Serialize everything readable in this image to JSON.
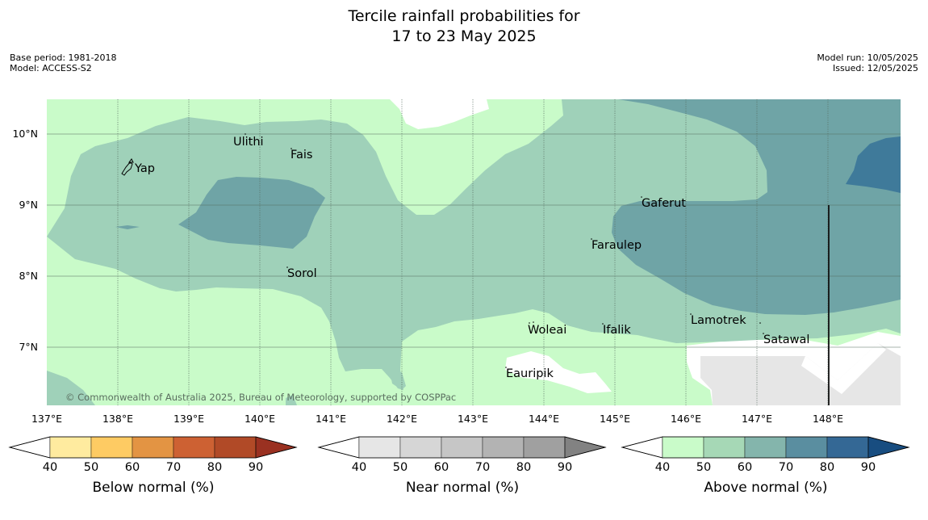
{
  "title": {
    "line1": "Tercile rainfall probabilities for",
    "line2": "17 to 23 May 2025"
  },
  "meta": {
    "base_period": "Base period: 1981-2018",
    "model": "Model: ACCESS-S2",
    "model_run": "Model run: 10/05/2025",
    "issued": "Issued: 12/05/2025"
  },
  "map": {
    "lat_labels": [
      "10°N",
      "9°N",
      "8°N",
      "7°N"
    ],
    "lon_labels": [
      "137°E",
      "138°E",
      "139°E",
      "140°E",
      "141°E",
      "142°E",
      "143°E",
      "144°E",
      "145°E",
      "146°E",
      "147°E",
      "148°E"
    ],
    "places": [
      {
        "name": "Yap"
      },
      {
        "name": "Ulithi"
      },
      {
        "name": "Fais"
      },
      {
        "name": "Sorol"
      },
      {
        "name": "Gaferut"
      },
      {
        "name": "Faraulep"
      },
      {
        "name": "Woleai"
      },
      {
        "name": "Ifalik"
      },
      {
        "name": "Lamotrek"
      },
      {
        "name": "Satawal"
      },
      {
        "name": "Eauripik"
      }
    ],
    "copyright": "© Commonwealth of Australia 2025, Bureau of Meteorology, supported by COSPPac",
    "colors": {
      "above_50": "#c9fbc9",
      "above_60": "#9fd1b9",
      "above_70": "#6fa4a6",
      "above_80": "#3f7a9a",
      "near_40": "#e6e6e6"
    }
  },
  "colorbars": [
    {
      "title": "Below normal (%)",
      "ticks": [
        "40",
        "50",
        "60",
        "70",
        "80",
        "90"
      ],
      "colors": [
        "#ffffff",
        "#ffeb9f",
        "#fecb63",
        "#e39443",
        "#cd6133",
        "#b14a27",
        "#9a3121"
      ]
    },
    {
      "title": "Near normal (%)",
      "ticks": [
        "40",
        "50",
        "60",
        "70",
        "80",
        "90"
      ],
      "colors": [
        "#ffffff",
        "#e6e6e6",
        "#d6d6d6",
        "#c6c6c6",
        "#b3b3b3",
        "#a0a0a0",
        "#828282"
      ]
    },
    {
      "title": "Above normal (%)",
      "ticks": [
        "40",
        "50",
        "60",
        "70",
        "80",
        "90"
      ],
      "colors": [
        "#ffffff",
        "#c9fbc9",
        "#a6d8b6",
        "#84b5ac",
        "#5a8ea0",
        "#346895",
        "#184d80"
      ]
    }
  ]
}
